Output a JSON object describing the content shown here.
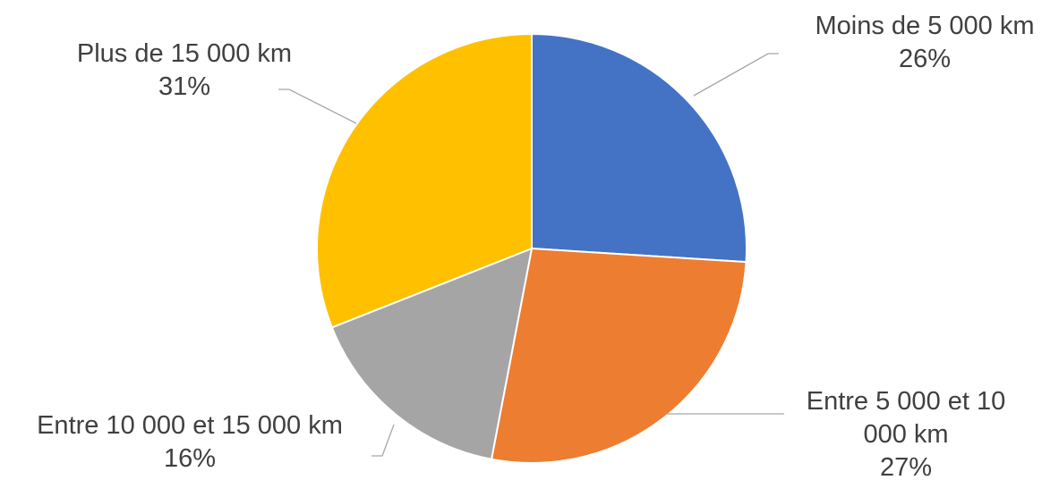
{
  "chart_data": {
    "type": "pie",
    "title": "",
    "start_angle_deg": 0,
    "direction": "clockwise",
    "slices": [
      {
        "label": "Moins de 5 000 km",
        "label_lines": [
          "Moins de 5 000 km"
        ],
        "value": 26,
        "percent_text": "26%",
        "color": "#4472C4"
      },
      {
        "label": "Entre 5 000 et 10 000 km",
        "label_lines": [
          "Entre 5 000 et 10",
          "000 km"
        ],
        "value": 27,
        "percent_text": "27%",
        "color": "#ED7D31"
      },
      {
        "label": "Entre 10 000 et 15 000 km",
        "label_lines": [
          "Entre 10 000 et 15 000 km"
        ],
        "value": 16,
        "percent_text": "16%",
        "color": "#A5A5A5"
      },
      {
        "label": "Plus de 15 000 km",
        "label_lines": [
          "Plus de 15 000 km"
        ],
        "value": 31,
        "percent_text": "31%",
        "color": "#FFC000"
      }
    ],
    "leader_line_color": "#A6A6A6",
    "label_color": "#404040"
  }
}
